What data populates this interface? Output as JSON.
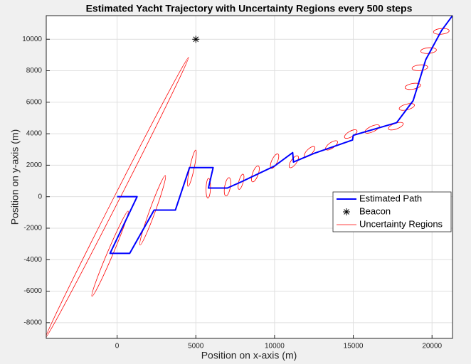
{
  "chart_data": {
    "type": "trajectory",
    "title": "Estimated Yacht Trajectory with Uncertainty Regions every 500 steps",
    "x_label": "Position on x-axis (m)",
    "y_label": "Position on y-axis (m)",
    "xlim": [
      -4500,
      21300
    ],
    "ylim": [
      -9000,
      11500
    ],
    "xticks": [
      0,
      5000,
      10000,
      15000,
      20000
    ],
    "yticks": [
      -8000,
      -6000,
      -4000,
      -2000,
      0,
      2000,
      4000,
      6000,
      8000,
      10000
    ],
    "grid": true,
    "legend": "right",
    "series": [
      {
        "name": "Estimated Path",
        "color": "#0000ff",
        "x": [
          0,
          1270,
          -450,
          800,
          2350,
          3700,
          4600,
          6100,
          5800,
          7000,
          7900,
          10000,
          11150,
          11200,
          12500,
          14950,
          15000,
          17400,
          17750,
          18800,
          19250,
          19600,
          20600,
          21300
        ],
        "y": [
          0,
          0,
          -3600,
          -3600,
          -850,
          -850,
          1850,
          1850,
          550,
          550,
          950,
          1950,
          2800,
          2200,
          2750,
          3600,
          3900,
          4600,
          4700,
          6100,
          7550,
          8700,
          10550,
          11500
        ]
      },
      {
        "name": "Beacon",
        "color": "#000000",
        "x": [
          5000
        ],
        "y": [
          10000
        ]
      }
    ],
    "regions": {
      "name": "Uncertainty Regions",
      "color": "#ff0000",
      "ellipses": [
        {
          "cx": 0,
          "cy": -45,
          "a": 10000,
          "b": 180,
          "angle": 63
        },
        {
          "cx": -450,
          "cy": -3620,
          "a": 2940,
          "b": 180,
          "angle": 67
        },
        {
          "cx": 2260,
          "cy": -860,
          "a": 2350,
          "b": 180,
          "angle": 70
        },
        {
          "cx": 4750,
          "cy": 1810,
          "a": 1180,
          "b": 140,
          "angle": 78
        },
        {
          "cx": 5790,
          "cy": 540,
          "a": 630,
          "b": 140,
          "angle": 88
        },
        {
          "cx": 7010,
          "cy": 630,
          "a": 590,
          "b": 180,
          "angle": 80
        },
        {
          "cx": 7870,
          "cy": 950,
          "a": 500,
          "b": 140,
          "angle": 75
        },
        {
          "cx": 8780,
          "cy": 1450,
          "a": 540,
          "b": 180,
          "angle": 70
        },
        {
          "cx": 10000,
          "cy": 2260,
          "a": 500,
          "b": 180,
          "angle": 65
        },
        {
          "cx": 11220,
          "cy": 2220,
          "a": 450,
          "b": 180,
          "angle": 55
        },
        {
          "cx": 12220,
          "cy": 2850,
          "a": 450,
          "b": 180,
          "angle": 45
        },
        {
          "cx": 13620,
          "cy": 3260,
          "a": 450,
          "b": 180,
          "angle": 35
        },
        {
          "cx": 14840,
          "cy": 3980,
          "a": 450,
          "b": 180,
          "angle": 30
        },
        {
          "cx": 16200,
          "cy": 4300,
          "a": 500,
          "b": 180,
          "angle": 25
        },
        {
          "cx": 17700,
          "cy": 4480,
          "a": 500,
          "b": 180,
          "angle": 20
        },
        {
          "cx": 18400,
          "cy": 5700,
          "a": 500,
          "b": 180,
          "angle": 15
        },
        {
          "cx": 18780,
          "cy": 7010,
          "a": 500,
          "b": 180,
          "angle": 10
        },
        {
          "cx": 19230,
          "cy": 8190,
          "a": 500,
          "b": 180,
          "angle": 5
        },
        {
          "cx": 19780,
          "cy": 9280,
          "a": 500,
          "b": 180,
          "angle": 5
        },
        {
          "cx": 20590,
          "cy": 10500,
          "a": 500,
          "b": 180,
          "angle": 5
        }
      ]
    }
  }
}
